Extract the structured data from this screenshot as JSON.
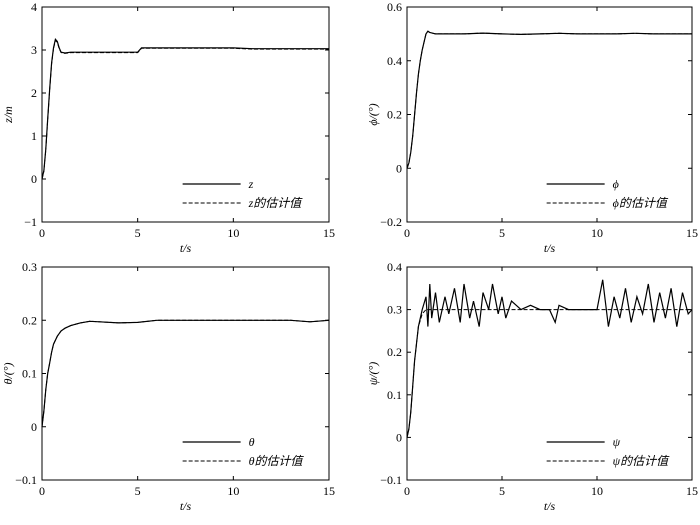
{
  "chart_data": [
    {
      "type": "line",
      "xlabel": "t/s",
      "ylabel": "z/m",
      "xlim": [
        0,
        15
      ],
      "ylim": [
        -1,
        4
      ],
      "xticks": [
        "0",
        "5",
        "10",
        "15"
      ],
      "yticks": [
        "−1",
        "0",
        "1",
        "2",
        "3",
        "4"
      ],
      "legend_position": "bottom-right",
      "series": [
        {
          "name": "z",
          "style": "solid",
          "x": [
            0,
            0.1,
            0.2,
            0.3,
            0.4,
            0.5,
            0.6,
            0.7,
            0.8,
            0.9,
            1.0,
            1.2,
            1.5,
            2,
            3,
            4,
            5,
            5.2,
            6,
            7,
            8,
            9,
            10,
            11,
            12,
            13,
            14,
            15
          ],
          "y": [
            0,
            0.2,
            0.7,
            1.4,
            2.1,
            2.7,
            3.05,
            3.25,
            3.2,
            3.05,
            2.95,
            2.93,
            2.95,
            2.95,
            2.95,
            2.95,
            2.95,
            3.05,
            3.05,
            3.05,
            3.05,
            3.05,
            3.05,
            3.03,
            3.03,
            3.03,
            3.03,
            3.03
          ]
        },
        {
          "name": "z的估计值",
          "style": "dashed",
          "x": [
            0,
            0.1,
            0.2,
            0.3,
            0.4,
            0.5,
            0.6,
            0.7,
            0.8,
            0.9,
            1.0,
            1.2,
            1.5,
            2,
            3,
            4,
            5,
            5.2,
            6,
            7,
            8,
            9,
            10,
            11,
            12,
            13,
            14,
            15
          ],
          "y": [
            0,
            0.18,
            0.68,
            1.38,
            2.08,
            2.68,
            3.03,
            3.22,
            3.18,
            3.03,
            2.94,
            2.92,
            2.94,
            2.94,
            2.94,
            2.94,
            2.94,
            3.04,
            3.04,
            3.04,
            3.04,
            3.04,
            3.04,
            3.02,
            3.02,
            3.02,
            3.02,
            3.02
          ]
        }
      ]
    },
    {
      "type": "line",
      "xlabel": "t/s",
      "ylabel": "ϕ/(°)",
      "xlim": [
        0,
        15
      ],
      "ylim": [
        -0.2,
        0.6
      ],
      "xticks": [
        "0",
        "5",
        "10",
        "15"
      ],
      "yticks": [
        "−0.2",
        "0",
        "0.2",
        "0.4",
        "0.6"
      ],
      "legend_position": "bottom-right",
      "series": [
        {
          "name": "ϕ",
          "style": "solid",
          "x": [
            0,
            0.1,
            0.2,
            0.3,
            0.4,
            0.5,
            0.6,
            0.7,
            0.8,
            0.9,
            1.0,
            1.1,
            1.2,
            1.5,
            2,
            3,
            4,
            5,
            6,
            7,
            8,
            9,
            10,
            11,
            12,
            13,
            14,
            15
          ],
          "y": [
            0,
            0.02,
            0.06,
            0.12,
            0.2,
            0.28,
            0.35,
            0.4,
            0.44,
            0.47,
            0.5,
            0.51,
            0.505,
            0.5,
            0.5,
            0.5,
            0.503,
            0.5,
            0.498,
            0.5,
            0.502,
            0.5,
            0.5,
            0.5,
            0.502,
            0.5,
            0.5,
            0.5
          ]
        },
        {
          "name": "ϕ的估计值",
          "style": "dashed",
          "x": [
            0,
            0.1,
            0.2,
            0.3,
            0.4,
            0.5,
            0.6,
            0.7,
            0.8,
            0.9,
            1.0,
            1.1,
            1.2,
            1.5,
            2,
            3,
            4,
            5,
            6,
            7,
            8,
            9,
            10,
            11,
            12,
            13,
            14,
            15
          ],
          "y": [
            0,
            0.02,
            0.06,
            0.12,
            0.2,
            0.28,
            0.35,
            0.4,
            0.44,
            0.47,
            0.5,
            0.51,
            0.505,
            0.5,
            0.5,
            0.5,
            0.503,
            0.5,
            0.498,
            0.5,
            0.502,
            0.5,
            0.5,
            0.5,
            0.502,
            0.5,
            0.5,
            0.5
          ]
        }
      ]
    },
    {
      "type": "line",
      "xlabel": "t/s",
      "ylabel": "θ/(°)",
      "xlim": [
        0,
        15
      ],
      "ylim": [
        -0.1,
        0.3
      ],
      "xticks": [
        "0",
        "5",
        "10",
        "15"
      ],
      "yticks": [
        "−0.1",
        "0",
        "0.1",
        "0.2",
        "0.3"
      ],
      "legend_position": "bottom-right",
      "series": [
        {
          "name": "θ",
          "style": "solid",
          "x": [
            0,
            0.1,
            0.2,
            0.3,
            0.4,
            0.5,
            0.6,
            0.8,
            1.0,
            1.2,
            1.5,
            2,
            2.5,
            3,
            4,
            5,
            6,
            7,
            8,
            9,
            10,
            11,
            12,
            13,
            14,
            15
          ],
          "y": [
            0,
            0.03,
            0.07,
            0.1,
            0.12,
            0.14,
            0.155,
            0.17,
            0.18,
            0.185,
            0.19,
            0.195,
            0.198,
            0.197,
            0.195,
            0.196,
            0.2,
            0.2,
            0.2,
            0.2,
            0.2,
            0.2,
            0.2,
            0.2,
            0.197,
            0.2
          ]
        },
        {
          "name": "θ的估计值",
          "style": "dashed",
          "x": [
            0,
            0.1,
            0.2,
            0.3,
            0.4,
            0.5,
            0.6,
            0.8,
            1.0,
            1.2,
            1.5,
            2,
            2.5,
            3,
            4,
            5,
            6,
            7,
            8,
            9,
            10,
            11,
            12,
            13,
            14,
            15
          ],
          "y": [
            0,
            0.03,
            0.07,
            0.1,
            0.12,
            0.14,
            0.155,
            0.17,
            0.18,
            0.185,
            0.19,
            0.195,
            0.198,
            0.197,
            0.195,
            0.196,
            0.2,
            0.2,
            0.2,
            0.2,
            0.2,
            0.2,
            0.2,
            0.2,
            0.197,
            0.2
          ]
        }
      ]
    },
    {
      "type": "line",
      "xlabel": "t/s",
      "ylabel": "ψ/(°)",
      "xlim": [
        0,
        15
      ],
      "ylim": [
        -0.1,
        0.4
      ],
      "xticks": [
        "0",
        "5",
        "10",
        "15"
      ],
      "yticks": [
        "−0.1",
        "0",
        "0.1",
        "0.2",
        "0.3",
        "0.4"
      ],
      "legend_position": "bottom-right",
      "series": [
        {
          "name": "ψ",
          "style": "solid",
          "x": [
            0,
            0.1,
            0.2,
            0.3,
            0.4,
            0.5,
            0.6,
            0.8,
            1.0,
            1.1,
            1.2,
            1.3,
            1.5,
            1.7,
            2.0,
            2.2,
            2.5,
            2.8,
            3.0,
            3.3,
            3.5,
            3.8,
            4.0,
            4.3,
            4.5,
            4.8,
            5.0,
            5.2,
            5.5,
            6.0,
            6.5,
            7.0,
            7.5,
            7.8,
            8.0,
            8.5,
            9.0,
            9.5,
            10.0,
            10.3,
            10.6,
            10.9,
            11.2,
            11.5,
            11.8,
            12.1,
            12.4,
            12.7,
            13.0,
            13.3,
            13.6,
            13.9,
            14.2,
            14.5,
            14.8,
            15.0
          ],
          "y": [
            0,
            0.02,
            0.06,
            0.12,
            0.18,
            0.22,
            0.26,
            0.3,
            0.33,
            0.26,
            0.36,
            0.28,
            0.34,
            0.27,
            0.33,
            0.29,
            0.35,
            0.27,
            0.36,
            0.28,
            0.32,
            0.26,
            0.34,
            0.3,
            0.36,
            0.29,
            0.33,
            0.28,
            0.32,
            0.3,
            0.31,
            0.3,
            0.3,
            0.27,
            0.31,
            0.3,
            0.3,
            0.3,
            0.3,
            0.37,
            0.26,
            0.33,
            0.28,
            0.35,
            0.27,
            0.33,
            0.29,
            0.36,
            0.27,
            0.34,
            0.28,
            0.35,
            0.26,
            0.34,
            0.29,
            0.3
          ]
        },
        {
          "name": "ψ的估计值",
          "style": "dashed",
          "x": [
            0,
            0.1,
            0.2,
            0.3,
            0.4,
            0.5,
            0.6,
            0.8,
            1.0,
            1.5,
            2,
            3,
            4,
            5,
            6,
            7,
            8,
            9,
            10,
            11,
            12,
            13,
            14,
            15
          ],
          "y": [
            0,
            0.02,
            0.06,
            0.12,
            0.18,
            0.22,
            0.26,
            0.29,
            0.3,
            0.3,
            0.3,
            0.3,
            0.3,
            0.3,
            0.3,
            0.3,
            0.3,
            0.3,
            0.3,
            0.3,
            0.3,
            0.3,
            0.3,
            0.3
          ]
        }
      ]
    }
  ]
}
